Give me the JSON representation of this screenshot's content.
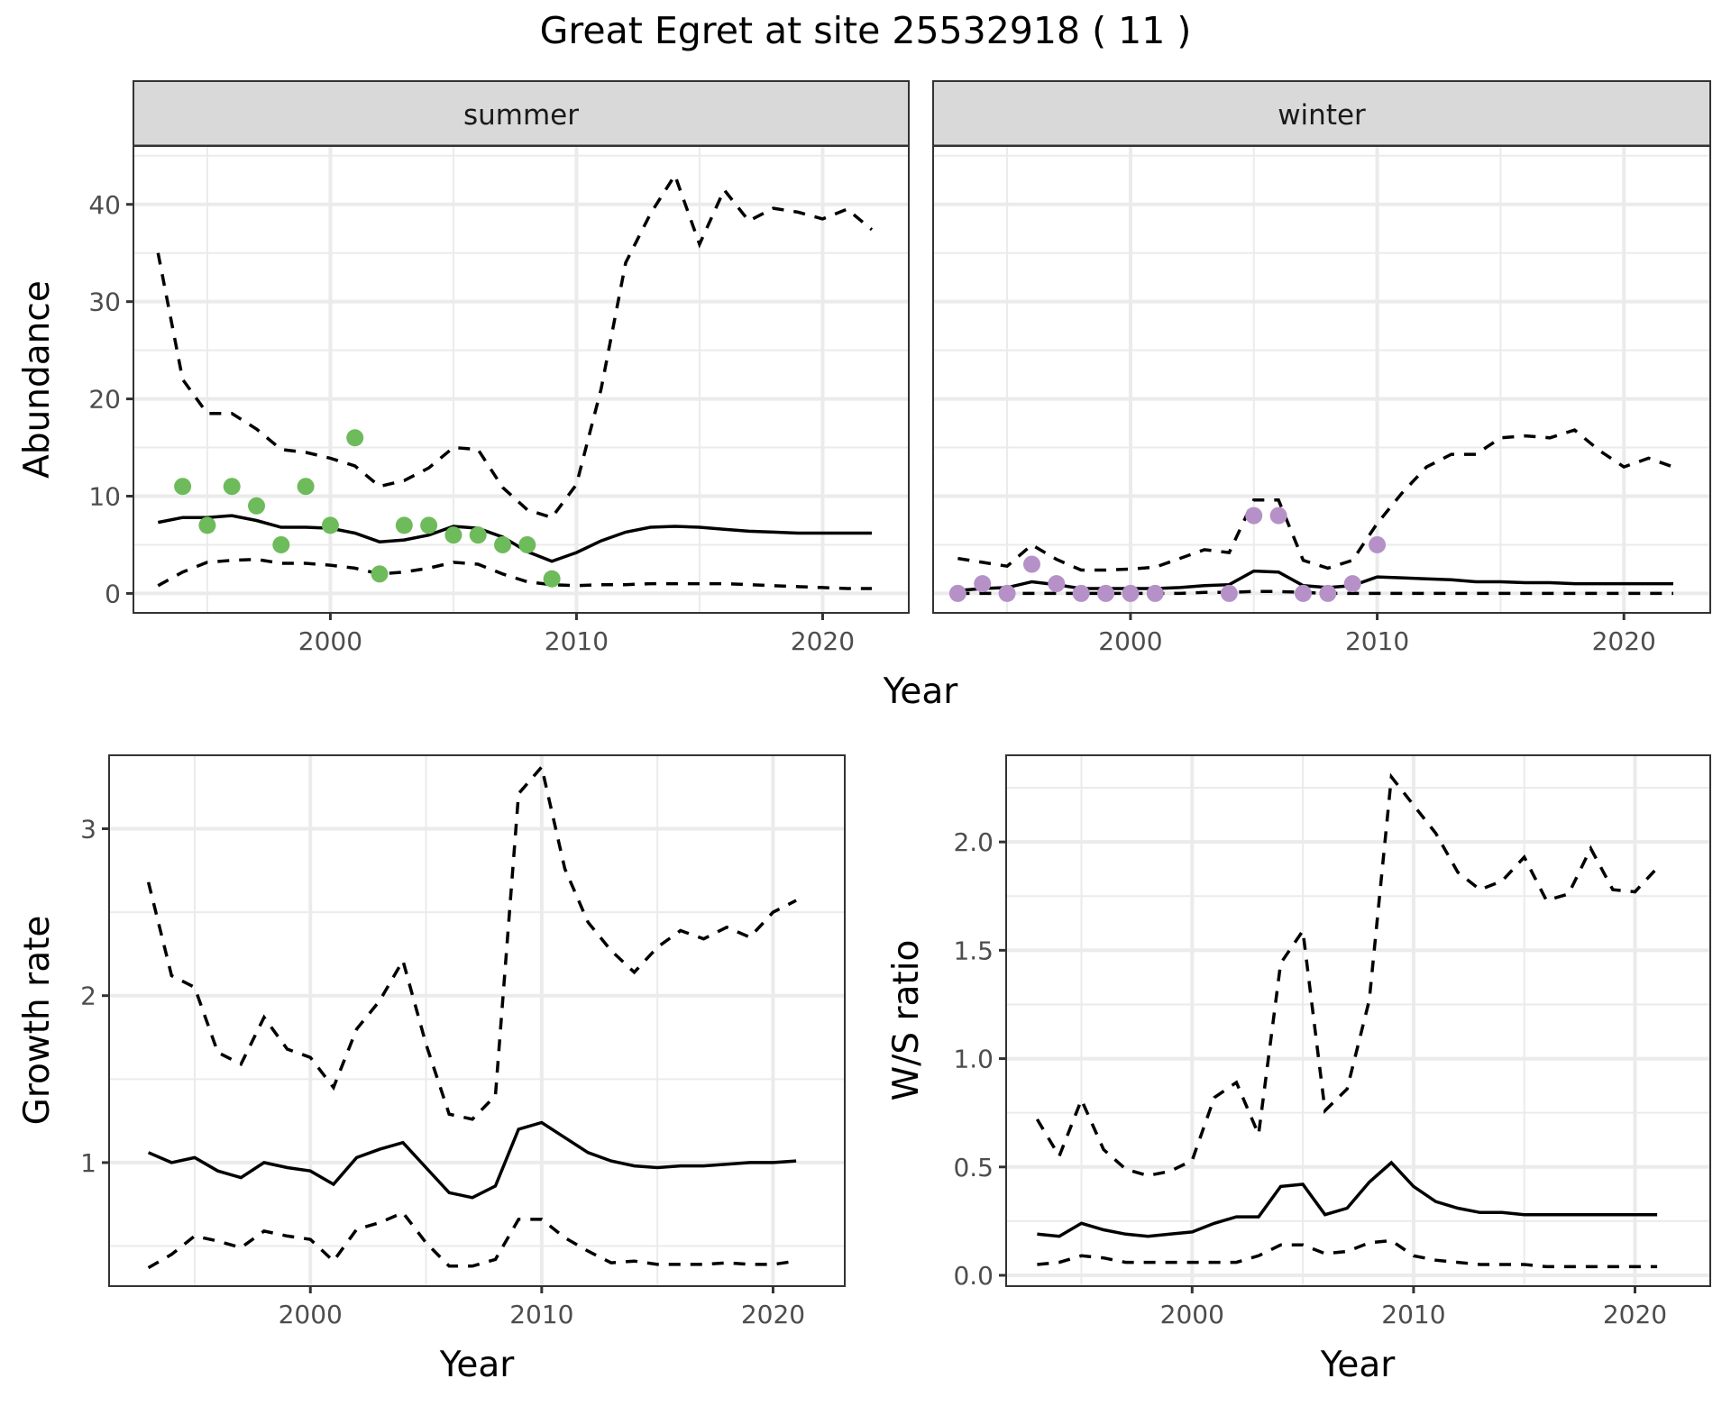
{
  "chart_data": {
    "title": "Great Egret at site 25532918 ( 11 )",
    "panels": [
      {
        "id": "abundance",
        "type": "line",
        "facets": [
          "summer",
          "winter"
        ],
        "xlabel": "Year",
        "ylabel": "Abundance",
        "xlim": [
          1992,
          2023.5
        ],
        "ylim": [
          -2,
          46
        ],
        "xticks": [
          2000,
          2010,
          2020
        ],
        "yticks": [
          0,
          10,
          20,
          30,
          40
        ],
        "grid": true,
        "series": {
          "summer": {
            "x": [
              1993,
              1994,
              1995,
              1996,
              1997,
              1998,
              1999,
              2000,
              2001,
              2002,
              2003,
              2004,
              2005,
              2006,
              2007,
              2008,
              2009,
              2010,
              2011,
              2012,
              2013,
              2014,
              2015,
              2016,
              2017,
              2018,
              2019,
              2020,
              2021,
              2022
            ],
            "mean": [
              7.3,
              7.8,
              7.8,
              8.0,
              7.5,
              6.8,
              6.8,
              6.7,
              6.2,
              5.3,
              5.5,
              6.0,
              6.9,
              6.7,
              5.8,
              4.3,
              3.3,
              4.2,
              5.4,
              6.3,
              6.8,
              6.9,
              6.8,
              6.6,
              6.4,
              6.3,
              6.2,
              6.2,
              6.2,
              6.2
            ],
            "lower": [
              0.8,
              2.2,
              3.2,
              3.4,
              3.5,
              3.1,
              3.1,
              2.9,
              2.6,
              2.0,
              2.2,
              2.6,
              3.2,
              3.0,
              2.0,
              1.2,
              0.9,
              0.8,
              0.9,
              0.9,
              1.0,
              1.0,
              1.0,
              1.0,
              0.9,
              0.8,
              0.7,
              0.6,
              0.5,
              0.5
            ],
            "upper": [
              35.0,
              22.0,
              18.5,
              18.5,
              16.9,
              14.8,
              14.5,
              13.9,
              13.1,
              11.0,
              11.6,
              12.9,
              15.0,
              14.8,
              10.9,
              8.6,
              7.8,
              11.2,
              21.0,
              34.0,
              39.0,
              43.0,
              35.9,
              41.5,
              38.3,
              39.6,
              39.2,
              38.5,
              39.5,
              37.4
            ],
            "observed": {
              "x": [
                1994,
                1995,
                1996,
                1997,
                1998,
                1999,
                2000,
                2001,
                2002,
                2003,
                2004,
                2005,
                2006,
                2007,
                2008,
                2009
              ],
              "y": [
                11,
                7,
                11,
                9,
                5,
                11,
                7,
                16,
                2,
                7,
                7,
                6,
                6,
                5,
                5,
                1.5
              ]
            }
          },
          "winter": {
            "x": [
              1993,
              1994,
              1995,
              1996,
              1997,
              1998,
              1999,
              2000,
              2001,
              2002,
              2003,
              2004,
              2005,
              2006,
              2007,
              2008,
              2009,
              2010,
              2011,
              2012,
              2013,
              2014,
              2015,
              2016,
              2017,
              2018,
              2019,
              2020,
              2021,
              2022
            ],
            "mean": [
              0.3,
              0.5,
              0.6,
              1.2,
              0.9,
              0.5,
              0.5,
              0.5,
              0.5,
              0.6,
              0.8,
              0.9,
              2.3,
              2.2,
              0.8,
              0.6,
              0.8,
              1.7,
              1.6,
              1.5,
              1.4,
              1.2,
              1.2,
              1.1,
              1.1,
              1.0,
              1.0,
              1.0,
              1.0,
              1.0
            ],
            "lower": [
              0.0,
              0.0,
              0.0,
              0.0,
              0.0,
              0.0,
              0.0,
              0.0,
              0.0,
              0.0,
              0.1,
              0.1,
              0.2,
              0.2,
              0.1,
              0.0,
              0.0,
              0.0,
              0.0,
              0.0,
              0.0,
              0.0,
              0.0,
              0.0,
              0.0,
              0.0,
              0.0,
              0.0,
              0.0,
              0.0
            ],
            "upper": [
              3.6,
              3.2,
              2.8,
              5.0,
              3.5,
              2.4,
              2.4,
              2.5,
              2.7,
              3.6,
              4.5,
              4.2,
              9.6,
              9.6,
              3.4,
              2.6,
              3.4,
              7.2,
              10.3,
              13.0,
              14.3,
              14.3,
              16.0,
              16.2,
              16.0,
              16.8,
              14.7,
              13.0,
              13.9,
              13.0
            ],
            "observed": {
              "x": [
                1993,
                1994,
                1995,
                1996,
                1997,
                1998,
                1999,
                2000,
                2001,
                2004,
                2005,
                2006,
                2007,
                2008,
                2009,
                2010
              ],
              "y": [
                0,
                1,
                0,
                3,
                1,
                0,
                0,
                0,
                0,
                0,
                8,
                8,
                0,
                0,
                1,
                5
              ]
            }
          }
        }
      },
      {
        "id": "growth",
        "type": "line",
        "xlabel": "Year",
        "ylabel": "Growth rate",
        "xlim": [
          1991.3,
          2023.1
        ],
        "ylim": [
          0.26,
          3.44
        ],
        "xticks": [
          2000,
          2010,
          2020
        ],
        "yticks": [
          1,
          2,
          3
        ],
        "grid": true,
        "x": [
          1993,
          1994,
          1995,
          1996,
          1997,
          1998,
          1999,
          2000,
          2001,
          2002,
          2003,
          2004,
          2005,
          2006,
          2007,
          2008,
          2009,
          2010,
          2011,
          2012,
          2013,
          2014,
          2015,
          2016,
          2017,
          2018,
          2019,
          2020,
          2021
        ],
        "mean": [
          1.06,
          1.0,
          1.03,
          0.95,
          0.91,
          1.0,
          0.97,
          0.95,
          0.87,
          1.03,
          1.08,
          1.12,
          0.97,
          0.82,
          0.79,
          0.86,
          1.2,
          1.24,
          1.15,
          1.06,
          1.01,
          0.98,
          0.97,
          0.98,
          0.98,
          0.99,
          1.0,
          1.0,
          1.01
        ],
        "lower": [
          0.37,
          0.45,
          0.56,
          0.53,
          0.49,
          0.59,
          0.56,
          0.54,
          0.41,
          0.6,
          0.64,
          0.7,
          0.52,
          0.38,
          0.38,
          0.42,
          0.66,
          0.66,
          0.55,
          0.47,
          0.4,
          0.41,
          0.39,
          0.39,
          0.39,
          0.4,
          0.39,
          0.39,
          0.41
        ],
        "upper": [
          2.68,
          2.12,
          2.05,
          1.66,
          1.59,
          1.87,
          1.68,
          1.63,
          1.45,
          1.8,
          1.97,
          2.21,
          1.71,
          1.29,
          1.26,
          1.4,
          3.21,
          3.37,
          2.76,
          2.44,
          2.27,
          2.14,
          2.29,
          2.39,
          2.34,
          2.41,
          2.35,
          2.5,
          2.57
        ]
      },
      {
        "id": "ws_ratio",
        "type": "line",
        "xlabel": "Year",
        "ylabel": "W/S ratio",
        "xlim": [
          1991.6,
          2023.4
        ],
        "ylim": [
          -0.05,
          2.4
        ],
        "xticks": [
          2000,
          2010,
          2020
        ],
        "yticks": [
          0.0,
          0.5,
          1.0,
          1.5,
          2.0
        ],
        "grid": true,
        "x": [
          1993,
          1994,
          1995,
          1996,
          1997,
          1998,
          1999,
          2000,
          2001,
          2002,
          2003,
          2004,
          2005,
          2006,
          2007,
          2008,
          2009,
          2010,
          2011,
          2012,
          2013,
          2014,
          2015,
          2016,
          2017,
          2018,
          2019,
          2020,
          2021
        ],
        "mean": [
          0.19,
          0.18,
          0.24,
          0.21,
          0.19,
          0.18,
          0.19,
          0.2,
          0.24,
          0.27,
          0.27,
          0.41,
          0.42,
          0.28,
          0.31,
          0.43,
          0.52,
          0.41,
          0.34,
          0.31,
          0.29,
          0.29,
          0.28,
          0.28,
          0.28,
          0.28,
          0.28,
          0.28,
          0.28
        ],
        "lower": [
          0.05,
          0.06,
          0.09,
          0.08,
          0.06,
          0.06,
          0.06,
          0.06,
          0.06,
          0.06,
          0.09,
          0.14,
          0.14,
          0.1,
          0.11,
          0.15,
          0.16,
          0.09,
          0.07,
          0.06,
          0.05,
          0.05,
          0.05,
          0.04,
          0.04,
          0.04,
          0.04,
          0.04,
          0.04
        ],
        "upper": [
          0.72,
          0.55,
          0.81,
          0.58,
          0.49,
          0.46,
          0.48,
          0.53,
          0.82,
          0.89,
          0.65,
          1.44,
          1.59,
          0.76,
          0.86,
          1.27,
          2.3,
          2.17,
          2.04,
          1.86,
          1.78,
          1.82,
          1.93,
          1.73,
          1.76,
          1.97,
          1.78,
          1.77,
          1.88
        ]
      }
    ],
    "colors": {
      "summer_points": "#6DBB5A",
      "winter_points": "#B591C8",
      "line": "#000000",
      "grid": "#EBEBEB",
      "strip_bg": "#D9D9D9"
    }
  }
}
